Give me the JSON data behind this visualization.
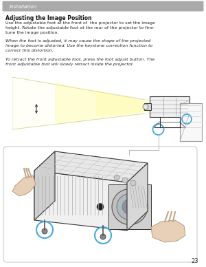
{
  "page_bg": "#ffffff",
  "header_bg": "#aaaaaa",
  "header_text": "Installation",
  "header_text_color": "#ffffff",
  "section_title": "Adjusting the Image Position",
  "body_text_1": "Use the adjustable foot at the front of  the projector to set the image\nheight. Rotate the adjustable foot at the rear of the projector to fine-\ntune the image position.",
  "body_text_2": "When the foot is adjusted, it may cause the shape of the projected\nimage to become distorted. Use the keystone correction function to\ncorrect this distortion.",
  "body_text_3": "To retract the front adjustable foot, press the foot adjust button. The\nfront adjustable foot will slowly retract inside the projector.",
  "page_number": "23",
  "light_beam_color": "#fffde0",
  "light_beam_color2": "#fffff0",
  "circle_color": "#44aadd",
  "box_bg": "#ffffff",
  "box_border": "#cccccc",
  "line_color": "#333333",
  "line_color_light": "#888888"
}
